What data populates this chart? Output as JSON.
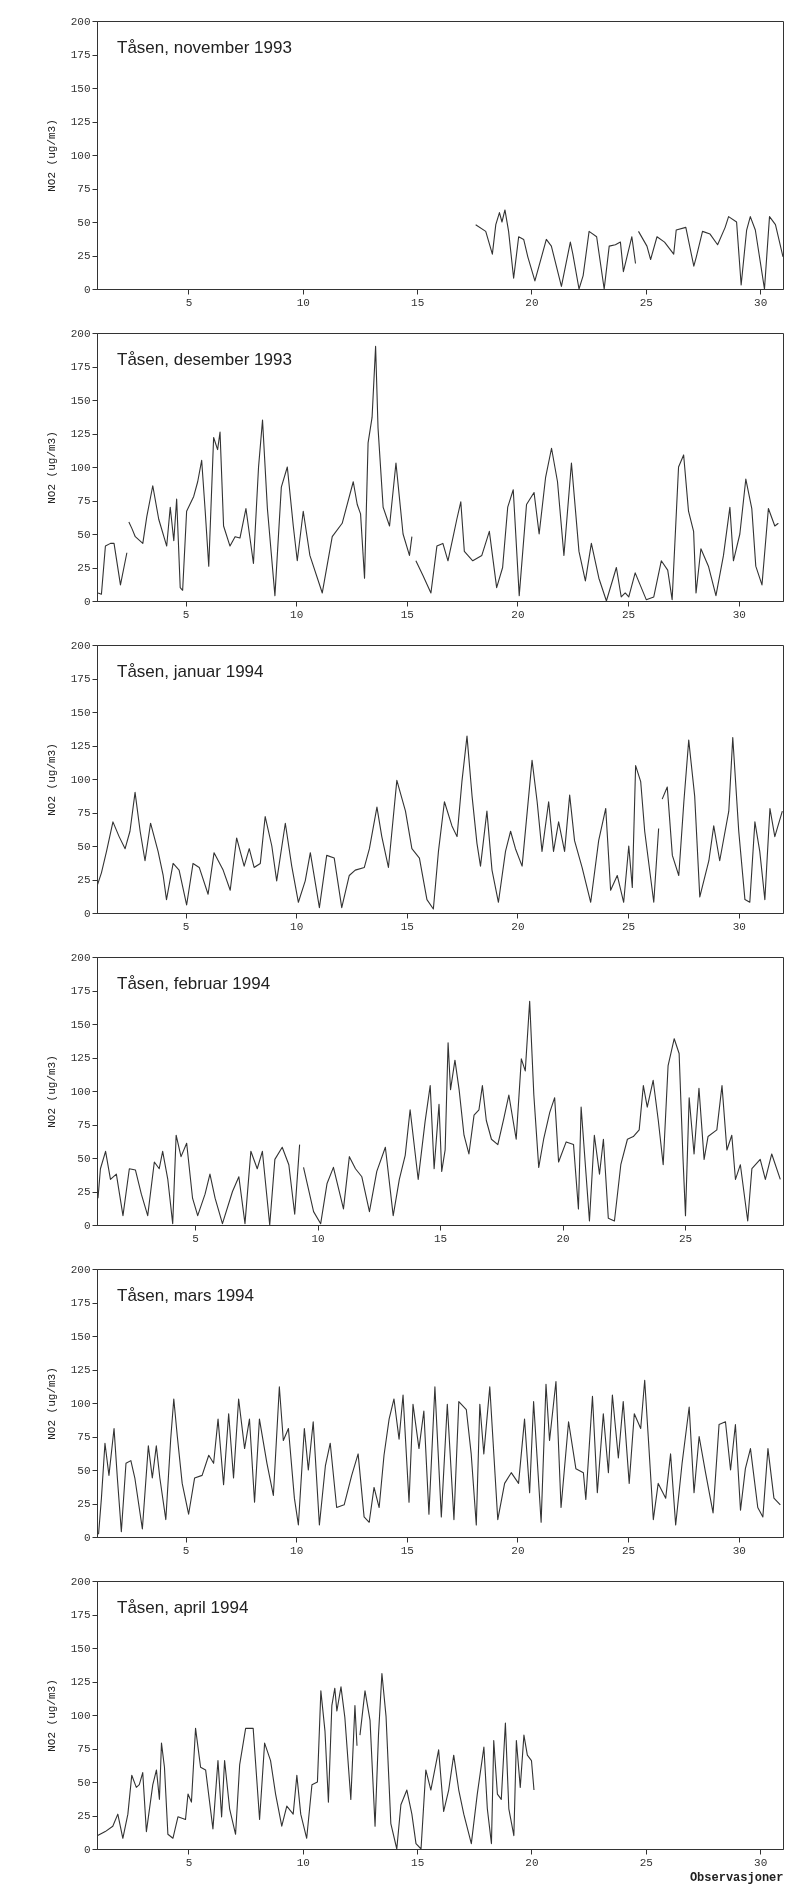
{
  "chart_data": [
    {
      "type": "line",
      "title": "Tåsen, november 1993",
      "ylabel": "NO2 (ug/m3)",
      "xlim": [
        1,
        31
      ],
      "xticks": [
        5,
        10,
        15,
        20,
        25,
        30
      ],
      "ylim": [
        0,
        200
      ],
      "yticks": [
        0,
        25,
        50,
        75,
        100,
        125,
        150,
        175,
        200
      ],
      "x": [
        17.56,
        18.0,
        18.29,
        18.44,
        18.6,
        18.71,
        18.84,
        19.0,
        19.22,
        19.44,
        19.66,
        19.84,
        20.15,
        20.65,
        20.87,
        21.31,
        21.7,
        21.81,
        22.08,
        22.26,
        22.52,
        22.85,
        23.18,
        23.4,
        23.67,
        23.89,
        24.02,
        24.39,
        24.55,
        24.6,
        24.68,
        25.05,
        25.21,
        25.49,
        25.82,
        26.22,
        26.33,
        26.75,
        27.1,
        27.21,
        27.48,
        27.81,
        28.14,
        28.47,
        28.62,
        28.97,
        29.17,
        29.41,
        29.57,
        29.79,
        30.19,
        30.41,
        30.67,
        31.0
      ],
      "series": [
        {
          "color": "#333333",
          "values": [
            48,
            43,
            26,
            48,
            57,
            50,
            59,
            43,
            8,
            39,
            37,
            24,
            6,
            37,
            32,
            2,
            35,
            26,
            0,
            10,
            43,
            39,
            0,
            32,
            33,
            35,
            13,
            39,
            19,
            null,
            43,
            32,
            22,
            39,
            35,
            26,
            44,
            46,
            17,
            24,
            43,
            41,
            33,
            46,
            54,
            50,
            3,
            44,
            54,
            44,
            0,
            54,
            48,
            24
          ]
        }
      ]
    },
    {
      "type": "line",
      "title": "Tåsen, desember 1993",
      "ylabel": "NO2 (ug/m3)",
      "xlim": [
        1,
        32
      ],
      "xticks": [
        5,
        10,
        15,
        20,
        25,
        30
      ],
      "ylim": [
        0,
        200
      ],
      "yticks": [
        0,
        25,
        50,
        75,
        100,
        125,
        150,
        175,
        200
      ],
      "x": [
        1.05,
        1.2,
        1.38,
        1.61,
        1.77,
        2.06,
        2.35,
        2.4,
        2.44,
        2.58,
        2.73,
        3.07,
        3.25,
        3.52,
        3.79,
        4.15,
        4.31,
        4.47,
        4.6,
        4.76,
        4.87,
        5.05,
        5.37,
        5.55,
        5.73,
        5.89,
        6.05,
        6.27,
        6.45,
        6.56,
        6.72,
        7.01,
        7.24,
        7.46,
        7.73,
        8.07,
        8.3,
        8.48,
        8.7,
        9.04,
        9.33,
        9.6,
        9.87,
        10.05,
        10.32,
        10.62,
        11.18,
        11.63,
        12.08,
        12.58,
        12.76,
        12.91,
        13.09,
        13.25,
        13.43,
        13.59,
        13.7,
        13.93,
        14.22,
        14.51,
        14.83,
        15.12,
        15.23,
        15.3,
        15.41,
        15.73,
        16.09,
        16.36,
        16.63,
        16.86,
        17.08,
        17.26,
        17.44,
        17.6,
        17.98,
        18.39,
        18.73,
        19.06,
        19.33,
        19.56,
        19.81,
        20.08,
        20.41,
        20.75,
        20.98,
        21.27,
        21.54,
        21.81,
        22.1,
        22.44,
        22.78,
        23.07,
        23.34,
        23.68,
        24.02,
        24.47,
        24.69,
        24.87,
        25.03,
        25.32,
        25.82,
        26.16,
        26.5,
        26.79,
        26.99,
        27.28,
        27.51,
        27.73,
        27.96,
        28.07,
        28.29,
        28.63,
        28.97,
        29.31,
        29.6,
        29.76,
        30.05,
        30.32,
        30.59,
        30.77,
        31.05,
        31.34,
        31.63,
        31.79
      ],
      "series": [
        {
          "color": "#333333",
          "values": [
            6,
            5,
            41,
            43,
            43,
            12,
            36,
            null,
            59,
            54,
            48,
            43,
            63,
            86,
            61,
            41,
            70,
            45,
            76,
            10,
            8,
            67,
            78,
            89,
            105,
            67,
            26,
            122,
            113,
            126,
            56,
            41,
            48,
            47,
            69,
            28,
            100,
            135,
            69,
            4,
            85,
            100,
            56,
            30,
            67,
            34,
            6,
            48,
            58,
            89,
            72,
            65,
            17,
            118,
            137,
            190,
            129,
            70,
            56,
            103,
            50,
            34,
            48,
            null,
            30,
            19,
            6,
            41,
            43,
            30,
            47,
            61,
            74,
            37,
            30,
            34,
            52,
            10,
            25,
            70,
            83,
            4,
            72,
            81,
            50,
            92,
            114,
            89,
            34,
            103,
            37,
            15,
            43,
            17,
            0,
            25,
            3,
            6,
            3,
            21,
            1,
            3,
            30,
            23,
            1,
            100,
            109,
            67,
            52,
            6,
            39,
            26,
            4,
            34,
            70,
            30,
            50,
            91,
            69,
            26,
            12,
            69,
            56,
            58
          ]
        }
      ]
    },
    {
      "type": "line",
      "title": "Tåsen, januar 1994",
      "ylabel": "NO2 (ug/m3)",
      "xlim": [
        1,
        32
      ],
      "xticks": [
        5,
        10,
        15,
        20,
        25,
        30
      ],
      "ylim": [
        0,
        200
      ],
      "yticks": [
        0,
        25,
        50,
        75,
        100,
        125,
        150,
        175,
        200
      ],
      "x": [
        1.02,
        1.2,
        1.43,
        1.72,
        2.0,
        2.27,
        2.49,
        2.72,
        2.95,
        3.17,
        3.42,
        3.76,
        3.99,
        4.14,
        4.44,
        4.71,
        5.05,
        5.34,
        5.62,
        6.02,
        6.29,
        6.7,
        7.02,
        7.31,
        7.65,
        7.88,
        8.1,
        8.38,
        8.6,
        8.9,
        9.12,
        9.51,
        9.8,
        10.1,
        10.41,
        10.64,
        11.05,
        11.38,
        11.72,
        12.06,
        12.4,
        12.67,
        13.08,
        13.31,
        13.65,
        13.87,
        14.17,
        14.55,
        14.94,
        15.23,
        15.57,
        15.91,
        16.2,
        16.43,
        16.7,
        17.04,
        17.27,
        17.49,
        17.72,
        17.95,
        18.17,
        18.33,
        18.62,
        18.85,
        19.14,
        19.46,
        19.69,
        19.91,
        20.21,
        20.66,
        20.89,
        21.11,
        21.41,
        21.63,
        21.86,
        22.13,
        22.36,
        22.58,
        22.92,
        23.31,
        23.67,
        23.99,
        24.21,
        24.51,
        24.8,
        25.03,
        25.19,
        25.34,
        25.57,
        25.75,
        26.16,
        26.38,
        26.45,
        26.54,
        26.77,
        27.0,
        27.29,
        27.52,
        27.74,
        28.01,
        28.24,
        28.65,
        28.87,
        29.14,
        29.55,
        29.73,
        30.0,
        30.28,
        30.5,
        30.73,
        30.95,
        31.18,
        31.41,
        31.63,
        31.97
      ],
      "series": [
        {
          "color": "#333333",
          "values": [
            21,
            30,
            46,
            68,
            57,
            48,
            61,
            90,
            61,
            39,
            67,
            46,
            28,
            10,
            37,
            32,
            6,
            37,
            34,
            14,
            45,
            32,
            17,
            56,
            35,
            48,
            34,
            37,
            72,
            50,
            24,
            67,
            35,
            8,
            24,
            45,
            4,
            43,
            41,
            4,
            28,
            32,
            34,
            48,
            79,
            57,
            34,
            99,
            76,
            48,
            41,
            10,
            3,
            46,
            83,
            65,
            57,
            98,
            132,
            87,
            52,
            35,
            76,
            32,
            8,
            46,
            61,
            48,
            35,
            114,
            83,
            46,
            83,
            46,
            68,
            46,
            88,
            54,
            34,
            8,
            54,
            78,
            17,
            28,
            8,
            50,
            19,
            110,
            98,
            61,
            8,
            63,
            null,
            85,
            94,
            43,
            28,
            83,
            129,
            87,
            12,
            39,
            65,
            39,
            76,
            131,
            61,
            10,
            8,
            68,
            46,
            10,
            78,
            57,
            76
          ]
        }
      ]
    },
    {
      "type": "line",
      "title": "Tåsen, februar 1994",
      "ylabel": "NO2 (ug/m3)",
      "xlim": [
        1,
        29
      ],
      "xticks": [
        5,
        10,
        15,
        20,
        25
      ],
      "ylim": [
        0,
        200
      ],
      "yticks": [
        0,
        25,
        50,
        75,
        100,
        125,
        150,
        175,
        200
      ],
      "x": [
        1.04,
        1.14,
        1.35,
        1.55,
        1.79,
        2.06,
        2.32,
        2.57,
        2.81,
        3.07,
        3.34,
        3.54,
        3.68,
        3.89,
        4.09,
        4.23,
        4.43,
        4.66,
        4.9,
        5.11,
        5.41,
        5.61,
        5.82,
        6.12,
        6.53,
        6.79,
        7.04,
        7.28,
        7.54,
        7.75,
        8.05,
        8.26,
        8.56,
        8.83,
        9.07,
        9.27,
        9.35,
        9.43,
        9.84,
        10.13,
        10.39,
        10.65,
        11.06,
        11.3,
        11.55,
        11.81,
        12.12,
        12.42,
        12.77,
        13.09,
        13.34,
        13.58,
        13.78,
        14.11,
        14.39,
        14.6,
        14.76,
        14.96,
        15.07,
        15.21,
        15.33,
        15.43,
        15.61,
        15.78,
        15.98,
        16.18,
        16.39,
        16.59,
        16.73,
        16.89,
        17.1,
        17.36,
        17.61,
        17.81,
        18.11,
        18.32,
        18.48,
        18.66,
        18.83,
        19.03,
        19.23,
        19.48,
        19.68,
        19.84,
        20.15,
        20.45,
        20.65,
        20.76,
        20.96,
        21.1,
        21.3,
        21.51,
        21.67,
        21.87,
        22.12,
        22.38,
        22.65,
        22.89,
        23.13,
        23.3,
        23.46,
        23.7,
        23.91,
        24.11,
        24.31,
        24.56,
        24.76,
        24.92,
        25.02,
        25.17,
        25.37,
        25.57,
        25.78,
        25.94,
        26.3,
        26.51,
        26.71,
        26.91,
        27.06,
        27.26,
        27.56,
        27.73,
        28.07,
        28.28,
        28.54,
        28.89
      ],
      "series": [
        {
          "color": "#333333",
          "values": [
            20,
            42,
            55,
            34,
            38,
            7,
            42,
            41,
            23,
            7,
            47,
            42,
            55,
            34,
            1,
            67,
            51,
            61,
            20,
            7,
            23,
            38,
            20,
            1,
            25,
            36,
            1,
            55,
            42,
            55,
            0,
            49,
            58,
            45,
            8,
            60,
            null,
            43,
            10,
            1,
            31,
            43,
            12,
            51,
            42,
            36,
            10,
            40,
            58,
            7,
            34,
            52,
            86,
            34,
            77,
            104,
            42,
            90,
            40,
            56,
            136,
            101,
            123,
            101,
            67,
            53,
            82,
            86,
            104,
            78,
            64,
            60,
            80,
            97,
            64,
            124,
            115,
            167,
            97,
            43,
            64,
            84,
            95,
            47,
            62,
            60,
            12,
            88,
            38,
            3,
            67,
            38,
            64,
            5,
            3,
            45,
            64,
            66,
            71,
            104,
            88,
            108,
            78,
            45,
            119,
            139,
            128,
            49,
            7,
            95,
            53,
            102,
            49,
            66,
            71,
            104,
            56,
            67,
            34,
            45,
            3,
            42,
            49,
            34,
            53,
            34
          ]
        }
      ]
    },
    {
      "type": "line",
      "title": "Tåsen, mars 1994",
      "ylabel": "NO2 (ug/m3)",
      "xlim": [
        1,
        32
      ],
      "xticks": [
        5,
        10,
        15,
        20,
        25,
        30
      ],
      "ylim": [
        0,
        200
      ],
      "yticks": [
        0,
        25,
        50,
        75,
        100,
        125,
        150,
        175,
        200
      ],
      "x": [
        1.07,
        1.2,
        1.36,
        1.54,
        1.77,
        1.92,
        2.1,
        2.31,
        2.53,
        2.71,
        3.05,
        3.32,
        3.5,
        3.68,
        3.84,
        4.11,
        4.33,
        4.47,
        4.63,
        4.85,
        5.14,
        5.41,
        5.75,
        6.05,
        6.27,
        6.47,
        6.72,
        6.95,
        7.17,
        7.4,
        7.67,
        7.89,
        8.12,
        8.34,
        8.68,
        8.97,
        9.24,
        9.42,
        9.65,
        9.92,
        10.1,
        10.37,
        10.55,
        10.77,
        11.05,
        11.32,
        11.54,
        11.83,
        12.17,
        12.51,
        12.8,
        13.07,
        13.3,
        13.52,
        13.75,
        13.97,
        14.2,
        14.42,
        14.65,
        14.83,
        15.1,
        15.28,
        15.55,
        15.77,
        16.0,
        16.27,
        16.56,
        16.83,
        17.13,
        17.35,
        17.69,
        17.91,
        18.14,
        18.3,
        18.48,
        18.75,
        19.11,
        19.42,
        19.72,
        20.05,
        20.32,
        20.55,
        20.73,
        21.07,
        21.29,
        21.45,
        21.74,
        21.97,
        22.31,
        22.64,
        22.98,
        23.09,
        23.39,
        23.61,
        23.88,
        24.11,
        24.29,
        24.56,
        24.78,
        25.05,
        25.28,
        25.57,
        25.75,
        25.91,
        26.14,
        26.36,
        26.7,
        26.92,
        27.15,
        27.44,
        27.76,
        27.98,
        28.21,
        28.5,
        28.84,
        29.11,
        29.4,
        29.63,
        29.85,
        30.08,
        30.3,
        30.53,
        30.86,
        31.09,
        31.32,
        31.59,
        31.88
      ],
      "series": [
        {
          "color": "#333333",
          "values": [
            2,
            29,
            70,
            46,
            81,
            44,
            4,
            55,
            57,
            44,
            6,
            68,
            44,
            68,
            44,
            13,
            73,
            103,
            75,
            40,
            17,
            44,
            46,
            61,
            55,
            88,
            39,
            92,
            44,
            103,
            66,
            88,
            26,
            88,
            55,
            31,
            112,
            72,
            81,
            29,
            9,
            81,
            50,
            86,
            9,
            53,
            70,
            22,
            24,
            46,
            62,
            15,
            11,
            37,
            22,
            61,
            88,
            103,
            73,
            106,
            26,
            99,
            66,
            94,
            17,
            112,
            15,
            99,
            13,
            101,
            95,
            62,
            9,
            99,
            62,
            112,
            13,
            40,
            48,
            40,
            88,
            33,
            101,
            11,
            114,
            72,
            116,
            22,
            86,
            51,
            48,
            28,
            105,
            33,
            92,
            48,
            106,
            59,
            101,
            40,
            92,
            81,
            117,
            75,
            13,
            40,
            29,
            62,
            9,
            55,
            97,
            33,
            75,
            48,
            18,
            84,
            86,
            50,
            84,
            20,
            51,
            66,
            22,
            15,
            66,
            29,
            24
          ]
        }
      ]
    },
    {
      "type": "line",
      "title": "Tåsen, april 1994",
      "ylabel": "NO2 (ug/m3)",
      "xlabel": "Observasjoner",
      "xlim": [
        1,
        31
      ],
      "xticks": [
        5,
        10,
        15,
        20,
        25,
        30
      ],
      "ylim": [
        0,
        200
      ],
      "yticks": [
        0,
        25,
        50,
        75,
        100,
        125,
        150,
        175,
        200
      ],
      "x": [
        1.03,
        1.36,
        1.69,
        1.91,
        2.13,
        2.35,
        2.52,
        2.72,
        2.85,
        3.0,
        3.16,
        3.44,
        3.6,
        3.73,
        3.82,
        3.95,
        4.1,
        4.32,
        4.54,
        4.87,
        4.98,
        5.13,
        5.31,
        5.53,
        5.75,
        6.07,
        6.29,
        6.45,
        6.58,
        6.8,
        7.06,
        7.24,
        7.5,
        7.83,
        8.11,
        8.33,
        8.59,
        8.81,
        9.08,
        9.3,
        9.58,
        9.74,
        9.91,
        10.17,
        10.4,
        10.64,
        10.79,
        10.97,
        11.12,
        11.27,
        11.4,
        11.49,
        11.67,
        11.84,
        12.1,
        12.28,
        12.37,
        12.45,
        12.5,
        12.72,
        12.94,
        13.16,
        13.31,
        13.46,
        13.64,
        13.85,
        14.11,
        14.29,
        14.55,
        14.77,
        14.95,
        15.17,
        15.38,
        15.6,
        15.94,
        16.16,
        16.38,
        16.6,
        16.82,
        17.04,
        17.37,
        17.63,
        17.92,
        18.07,
        18.25,
        18.35,
        18.51,
        18.68,
        18.86,
        19.01,
        19.23,
        19.34,
        19.51,
        19.67,
        19.82,
        20.0,
        20.11
      ],
      "series": [
        {
          "color": "#333333",
          "values": [
            10,
            13,
            17,
            26,
            8,
            26,
            55,
            46,
            48,
            57,
            13,
            48,
            59,
            37,
            79,
            61,
            11,
            8,
            24,
            22,
            41,
            35,
            90,
            61,
            59,
            15,
            66,
            24,
            66,
            30,
            11,
            63,
            90,
            90,
            22,
            79,
            66,
            41,
            17,
            32,
            26,
            55,
            26,
            8,
            48,
            50,
            118,
            88,
            35,
            107,
            120,
            103,
            121,
            98,
            37,
            107,
            77,
            null,
            85,
            118,
            96,
            17,
            85,
            131,
            99,
            19,
            0,
            33,
            44,
            26,
            4,
            0,
            59,
            44,
            74,
            28,
            44,
            70,
            44,
            26,
            4,
            41,
            76,
            30,
            4,
            81,
            41,
            37,
            94,
            30,
            10,
            81,
            46,
            85,
            70,
            66,
            44
          ]
        }
      ]
    }
  ]
}
